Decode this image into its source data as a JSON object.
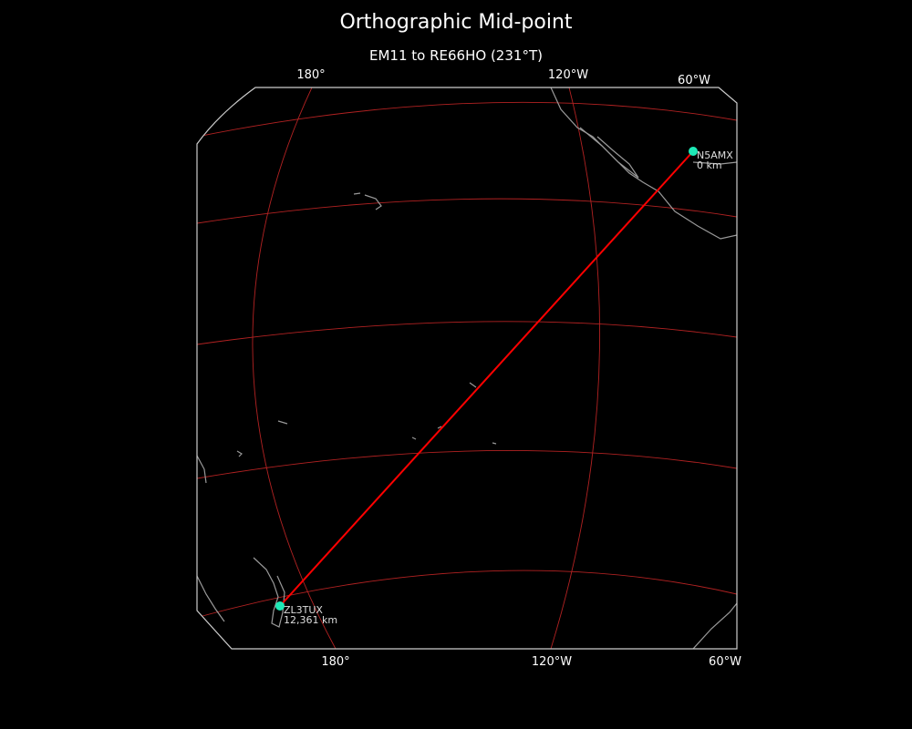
{
  "title": "Orthographic Mid-point",
  "subtitle": "EM11 to RE66HO (231°T)",
  "top_ticks": [
    "180°",
    "120°W",
    "60°W"
  ],
  "bottom_ticks": [
    "180°",
    "120°W",
    "60°W"
  ],
  "stations": [
    {
      "call": "N5AMX",
      "distance": "0 km",
      "lat": 32.9,
      "lon": -97.0
    },
    {
      "call": "ZL3TUX",
      "distance": "12,361 km",
      "lat": -43.6,
      "lon": 172.6
    }
  ],
  "colors": {
    "background": "#000000",
    "path": "#ff0000",
    "graticule": "#b22222",
    "coastline": "#999999",
    "station_marker": "#1de9b6",
    "frame": "#cccccc"
  }
}
